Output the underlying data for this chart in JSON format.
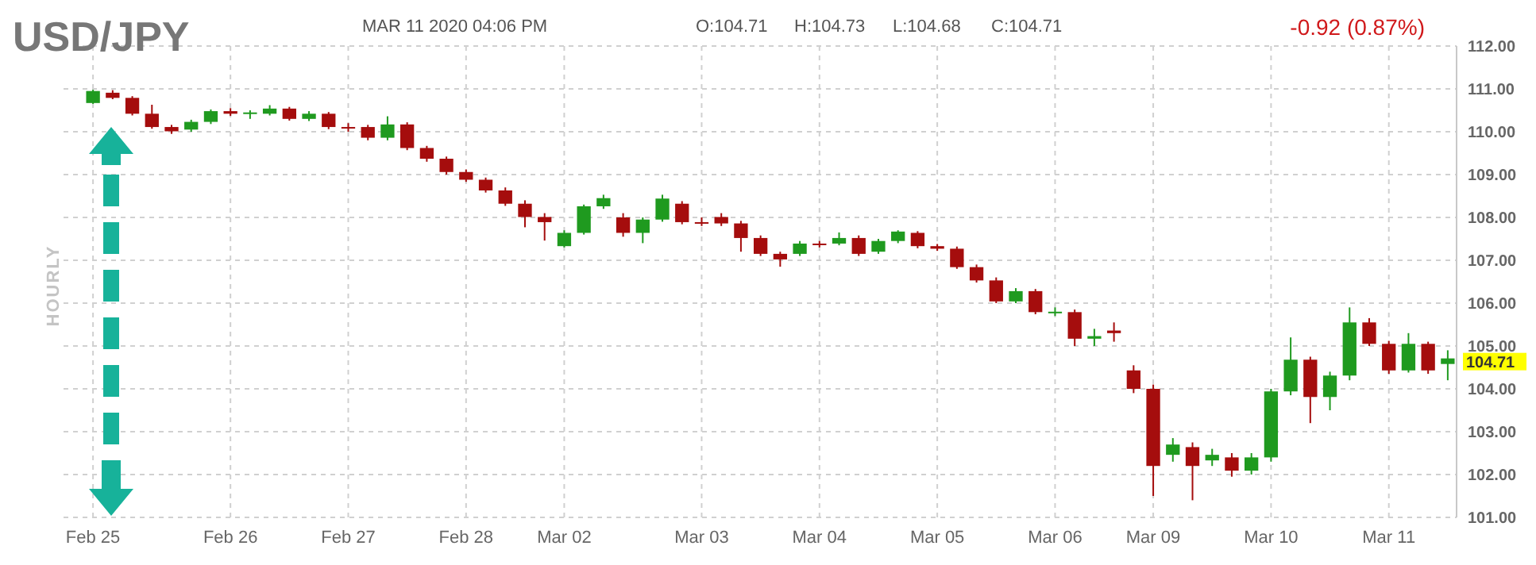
{
  "chart_data": {
    "type": "candlestick",
    "title": "USD/JPY",
    "ylabel": "HOURLY",
    "categories": [
      "Feb 25",
      null,
      null,
      null,
      null,
      null,
      null,
      "Feb 26",
      null,
      null,
      null,
      null,
      null,
      "Feb 27",
      null,
      null,
      null,
      null,
      null,
      "Feb 28",
      null,
      null,
      null,
      null,
      "Mar 02",
      null,
      null,
      null,
      null,
      null,
      null,
      "Mar 03",
      null,
      null,
      null,
      null,
      null,
      "Mar 04",
      null,
      null,
      null,
      null,
      null,
      "Mar 05",
      null,
      null,
      null,
      null,
      null,
      "Mar 06",
      null,
      null,
      null,
      null,
      "Mar 09",
      null,
      null,
      null,
      null,
      null,
      "Mar 10",
      null,
      null,
      null,
      null,
      null,
      "Mar 11",
      null,
      null,
      null
    ],
    "ohlc": [
      [
        110.67,
        110.98,
        110.65,
        110.95
      ],
      [
        110.91,
        110.97,
        110.76,
        110.79
      ],
      [
        110.79,
        110.83,
        110.38,
        110.42
      ],
      [
        110.42,
        110.63,
        110.07,
        110.11
      ],
      [
        110.11,
        110.16,
        109.95,
        110.01
      ],
      [
        110.05,
        110.28,
        110.0,
        110.23
      ],
      [
        110.23,
        110.52,
        110.18,
        110.48
      ],
      [
        110.48,
        110.55,
        110.37,
        110.42
      ],
      [
        110.42,
        110.5,
        110.3,
        110.45
      ],
      [
        110.42,
        110.62,
        110.38,
        110.54
      ],
      [
        110.54,
        110.58,
        110.26,
        110.3
      ],
      [
        110.3,
        110.48,
        110.25,
        110.42
      ],
      [
        110.42,
        110.46,
        110.06,
        110.11
      ],
      [
        110.11,
        110.2,
        110.0,
        110.1
      ],
      [
        110.11,
        110.16,
        109.8,
        109.86
      ],
      [
        109.86,
        110.36,
        109.8,
        110.17
      ],
      [
        110.17,
        110.22,
        109.57,
        109.62
      ],
      [
        109.62,
        109.67,
        109.3,
        109.37
      ],
      [
        109.37,
        109.42,
        109.0,
        109.06
      ],
      [
        109.06,
        109.12,
        108.83,
        108.88
      ],
      [
        108.88,
        108.93,
        108.58,
        108.63
      ],
      [
        108.63,
        108.7,
        108.27,
        108.32
      ],
      [
        108.32,
        108.4,
        107.77,
        108.01
      ],
      [
        108.01,
        108.1,
        107.46,
        107.89
      ],
      [
        107.33,
        107.7,
        107.3,
        107.64
      ],
      [
        107.64,
        108.3,
        107.6,
        108.26
      ],
      [
        108.26,
        108.53,
        108.2,
        108.45
      ],
      [
        108.0,
        108.1,
        107.55,
        107.64
      ],
      [
        107.64,
        108.0,
        107.4,
        107.95
      ],
      [
        107.95,
        108.53,
        107.9,
        108.44
      ],
      [
        108.32,
        108.38,
        107.84,
        107.89
      ],
      [
        107.89,
        108.0,
        107.8,
        107.86
      ],
      [
        108.01,
        108.1,
        107.8,
        107.86
      ],
      [
        107.86,
        107.92,
        107.2,
        107.52
      ],
      [
        107.52,
        107.58,
        107.1,
        107.15
      ],
      [
        107.15,
        107.2,
        106.85,
        107.02
      ],
      [
        107.15,
        107.45,
        107.1,
        107.39
      ],
      [
        107.39,
        107.45,
        107.3,
        107.37
      ],
      [
        107.39,
        107.65,
        107.35,
        107.52
      ],
      [
        107.52,
        107.58,
        107.1,
        107.15
      ],
      [
        107.2,
        107.5,
        107.15,
        107.45
      ],
      [
        107.45,
        107.7,
        107.4,
        107.67
      ],
      [
        107.64,
        107.68,
        107.28,
        107.33
      ],
      [
        107.33,
        107.38,
        107.22,
        107.27
      ],
      [
        107.27,
        107.32,
        106.8,
        106.84
      ],
      [
        106.84,
        106.9,
        106.48,
        106.53
      ],
      [
        106.53,
        106.6,
        106.0,
        106.04
      ],
      [
        106.04,
        106.35,
        106.0,
        106.28
      ],
      [
        106.28,
        106.33,
        105.74,
        105.79
      ],
      [
        105.79,
        105.9,
        105.7,
        105.8
      ],
      [
        105.79,
        105.85,
        105.0,
        105.17
      ],
      [
        105.17,
        105.4,
        105.0,
        105.23
      ],
      [
        105.36,
        105.55,
        105.1,
        105.3
      ],
      [
        104.43,
        104.55,
        103.9,
        104.0
      ],
      [
        104.0,
        104.1,
        101.5,
        102.2
      ],
      [
        102.46,
        102.85,
        102.3,
        102.7
      ],
      [
        102.64,
        102.75,
        101.4,
        102.2
      ],
      [
        102.33,
        102.6,
        102.2,
        102.46
      ],
      [
        102.4,
        102.5,
        101.95,
        102.09
      ],
      [
        102.09,
        102.5,
        102.0,
        102.4
      ],
      [
        102.4,
        104.0,
        102.3,
        103.94
      ],
      [
        103.94,
        105.2,
        103.85,
        104.68
      ],
      [
        104.68,
        104.75,
        103.2,
        103.81
      ],
      [
        103.81,
        104.4,
        103.5,
        104.31
      ],
      [
        104.31,
        105.9,
        104.2,
        105.55
      ],
      [
        105.55,
        105.65,
        105.0,
        105.05
      ],
      [
        105.05,
        105.12,
        104.35,
        104.43
      ],
      [
        104.43,
        105.3,
        104.38,
        105.05
      ],
      [
        105.05,
        105.1,
        104.35,
        104.43
      ],
      [
        104.58,
        104.9,
        104.2,
        104.71
      ]
    ],
    "ylim": [
      101,
      112
    ],
    "yticks": [
      {
        "value": 101,
        "label": "101.00"
      },
      {
        "value": 102,
        "label": "102.00"
      },
      {
        "value": 103,
        "label": "103.00"
      },
      {
        "value": 104,
        "label": "104.00"
      },
      {
        "value": 105,
        "label": "105.00"
      },
      {
        "value": 106,
        "label": "106.00"
      },
      {
        "value": 107,
        "label": "107.00"
      },
      {
        "value": 108,
        "label": "108.00"
      },
      {
        "value": 109,
        "label": "109.00"
      },
      {
        "value": 110,
        "label": "110.00"
      },
      {
        "value": 111,
        "label": "111.00"
      },
      {
        "value": 112,
        "label": "112.00"
      }
    ],
    "grid": true,
    "annotations": [
      "MAR 11 2020 04:06 PM",
      "O:104.71",
      "H:104.73",
      "L:104.68",
      "C:104.71",
      "-0.92 (0.87%)",
      "104.71"
    ]
  }
}
